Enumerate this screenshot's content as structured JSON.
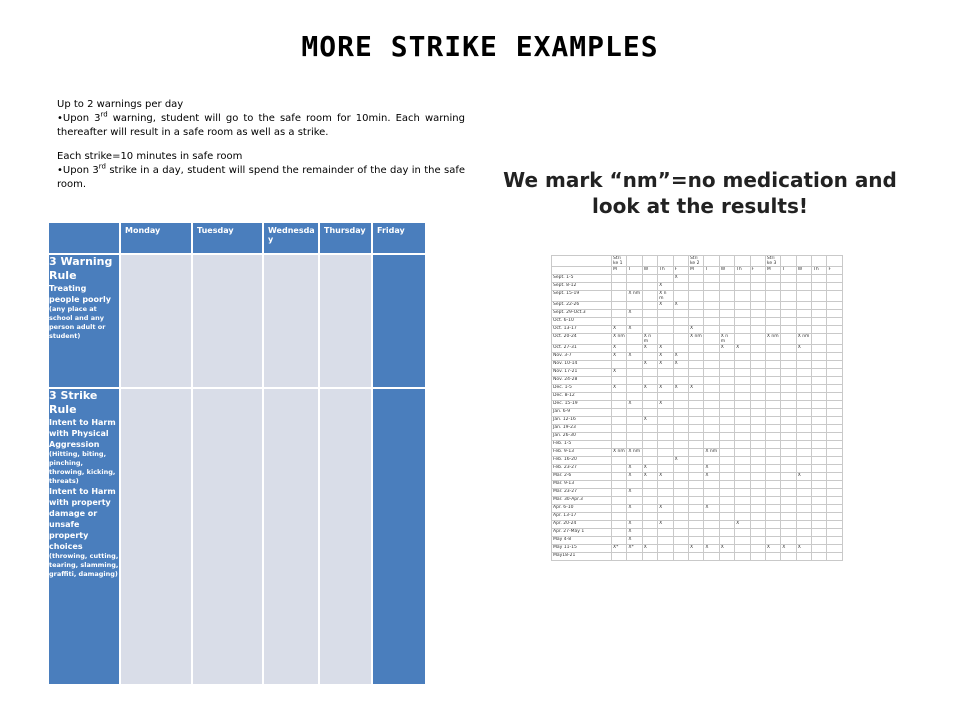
{
  "title": "More Strike Examples",
  "rules": {
    "warnings_heading": "Up to 2 warnings per day",
    "warning_bullet_pre": "Upon 3",
    "warning_bullet_sup": "rd",
    "warning_bullet_post": " warning,  student  will go to the safe room  for 10min.  Each warning thereafter will result in a safe room as well as a strike.",
    "strike_heading": "Each strike=10 minutes in safe room",
    "strike_bullet_pre": "Upon 3",
    "strike_bullet_sup": "rd",
    "strike_bullet_post": " strike in a day, student  will spend  the  remainder  of  the  day  in  the  safe room."
  },
  "left_table": {
    "columns": [
      "",
      "Monday",
      "Tuesday",
      "Wednesda y",
      "Thursday",
      "Friday"
    ],
    "rule1": {
      "name": "3 Warning Rule",
      "desc": "Treating people poorly",
      "note": "(any place at school and any person adult or student)"
    },
    "rule2": {
      "name": "3 Strike Rule",
      "desc1": "Intent to Harm with Physical Aggression",
      "note1": "(Hitting,  biting, pinching, throwing, kicking, threats)",
      "desc2": "Intent to Harm with property damage or unsafe property choices",
      "note2": "(throwing, cutting, tearing, slamming, graffiti, damaging)"
    }
  },
  "headline": "We mark “nm”=no medication and look at the results!",
  "grid": {
    "header1": [
      "",
      "Stri ke 1",
      "",
      "",
      "",
      "",
      "Stri ke 2",
      "",
      "",
      "",
      "",
      "Stri ke 3",
      "",
      "",
      "",
      ""
    ],
    "header2": [
      "",
      "M",
      "T",
      "W",
      "Th",
      "F",
      "M",
      "T",
      "W",
      "Th",
      "F",
      "M",
      "T",
      "W",
      "Th",
      "F"
    ],
    "rows": [
      [
        "Sept. 1-5",
        "",
        "",
        "",
        "",
        "X",
        "",
        "",
        "",
        "",
        "",
        "",
        "",
        "",
        "",
        ""
      ],
      [
        "Sept. 8-12",
        "",
        "",
        "",
        "X",
        "",
        "",
        "",
        "",
        "",
        "",
        "",
        "",
        "",
        "",
        ""
      ],
      [
        "Sept. 15-19",
        "",
        "X nm",
        "",
        "X n m",
        "",
        "",
        "",
        "",
        "",
        "",
        "",
        "",
        "",
        "",
        ""
      ],
      [
        "Sept. 22-26",
        "",
        "",
        "",
        "X",
        "X",
        "",
        "",
        "",
        "",
        "",
        "",
        "",
        "",
        "",
        ""
      ],
      [
        "Sept. 29-Oct.3",
        "",
        "X",
        "",
        "",
        "",
        "",
        "",
        "",
        "",
        "",
        "",
        "",
        "",
        "",
        ""
      ],
      [
        "Oct. 6-10",
        "",
        "",
        "",
        "",
        "",
        "",
        "",
        "",
        "",
        "",
        "",
        "",
        "",
        "",
        ""
      ],
      [
        "Oct. 13-17",
        "X",
        "X",
        "",
        "",
        "",
        "X",
        "",
        "",
        "",
        "",
        "",
        "",
        "",
        "",
        ""
      ],
      [
        "Oct. 20-24",
        "X nm",
        "",
        "X n m",
        "",
        "",
        "X nm",
        "",
        "X n m",
        "",
        "",
        "X nm",
        "",
        "X nm",
        "",
        ""
      ],
      [
        "Oct. 27-31",
        "X",
        "",
        "X",
        "X",
        "",
        "",
        "",
        "X",
        "X",
        "",
        "",
        "",
        "X",
        "",
        ""
      ],
      [
        "Nov. 3-7",
        "X",
        "X",
        "",
        "X",
        "X",
        "",
        "",
        "",
        "",
        "",
        "",
        "",
        "",
        "",
        ""
      ],
      [
        "Nov. 10-14",
        "",
        "",
        "X",
        "X",
        "X",
        "",
        "",
        "",
        "",
        "",
        "",
        "",
        "",
        "",
        ""
      ],
      [
        "Nov. 17-21",
        "X",
        "",
        "",
        "",
        "",
        "",
        "",
        "",
        "",
        "",
        "",
        "",
        "",
        "",
        ""
      ],
      [
        "Nov. 24-28",
        "",
        "",
        "",
        "",
        "",
        "",
        "",
        "",
        "",
        "",
        "",
        "",
        "",
        "",
        ""
      ],
      [
        "Dec. 1-5",
        "X",
        "",
        "X",
        "X",
        "X",
        "X",
        "",
        "",
        "",
        "",
        "",
        "",
        "",
        "",
        ""
      ],
      [
        "Dec. 8-12",
        "",
        "",
        "",
        "",
        "",
        "",
        "",
        "",
        "",
        "",
        "",
        "",
        "",
        "",
        ""
      ],
      [
        "Dec. 15-19",
        "",
        "X",
        "",
        "X",
        "",
        "",
        "",
        "",
        "",
        "",
        "",
        "",
        "",
        "",
        ""
      ],
      [
        "Jan. 6-9",
        "",
        "",
        "",
        "",
        "",
        "",
        "",
        "",
        "",
        "",
        "",
        "",
        "",
        "",
        ""
      ],
      [
        "Jan. 12-16",
        "",
        "",
        "X",
        "",
        "",
        "",
        "",
        "",
        "",
        "",
        "",
        "",
        "",
        "",
        ""
      ],
      [
        "Jan. 19-23",
        "",
        "",
        "",
        "",
        "",
        "",
        "",
        "",
        "",
        "",
        "",
        "",
        "",
        "",
        ""
      ],
      [
        "Jan. 26-30",
        "",
        "",
        "",
        "",
        "",
        "",
        "",
        "",
        "",
        "",
        "",
        "",
        "",
        "",
        ""
      ],
      [
        "Feb. 1-5",
        "",
        "",
        "",
        "",
        "",
        "",
        "",
        "",
        "",
        "",
        "",
        "",
        "",
        "",
        ""
      ],
      [
        "Feb. 9-13",
        "X nm",
        "X nm",
        "",
        "",
        "",
        "",
        "X nm",
        "",
        "",
        "",
        "",
        "",
        "",
        "",
        ""
      ],
      [
        "Feb. 16-20",
        "",
        "",
        "",
        "",
        "X",
        "",
        "",
        "",
        "",
        "",
        "",
        "",
        "",
        "",
        ""
      ],
      [
        "Feb. 23-27",
        "",
        "X",
        "X",
        "",
        "",
        "",
        "X",
        "",
        "",
        "",
        "",
        "",
        "",
        "",
        ""
      ],
      [
        "Mar. 2-6",
        "",
        "X",
        "X",
        "X",
        "",
        "",
        "X",
        "",
        "",
        "",
        "",
        "",
        "X",
        "",
        ""
      ],
      [
        "Mar. 9-13",
        "",
        "",
        "",
        "",
        "",
        "",
        "",
        "",
        "",
        "",
        "",
        "",
        "",
        "",
        ""
      ],
      [
        "Mar. 23-27",
        "",
        "X",
        "",
        "",
        "",
        "",
        "",
        "",
        "",
        "",
        "",
        "",
        "",
        "",
        ""
      ],
      [
        "Mar. 30-Apr.3",
        "",
        "",
        "",
        "",
        "",
        "",
        "",
        "",
        "",
        "",
        "",
        "",
        "",
        "",
        ""
      ],
      [
        "Apr. 6-10",
        "",
        "X",
        "",
        "X",
        "",
        "",
        "X",
        "",
        "",
        "",
        "",
        "",
        "",
        "",
        ""
      ],
      [
        "Apr. 13-17",
        "",
        "",
        "",
        "",
        "",
        "",
        "",
        "",
        "",
        "",
        "",
        "",
        "",
        "",
        ""
      ],
      [
        "Apr. 20-24",
        "",
        "X",
        "",
        "X",
        "",
        "",
        "",
        "",
        "X",
        "",
        "",
        "",
        "",
        "",
        ""
      ],
      [
        "Apr. 27-May 1",
        "",
        "X",
        "",
        "",
        "",
        "",
        "",
        "",
        "",
        "",
        "",
        "",
        "",
        "",
        ""
      ],
      [
        "May 4-8",
        "",
        "X",
        "",
        "",
        "",
        "",
        "",
        "",
        "",
        "",
        "",
        "",
        "",
        "",
        ""
      ],
      [
        "May 11-15",
        "X*",
        "X*",
        "X",
        "",
        "",
        "X",
        "X",
        "X",
        "",
        "",
        "X",
        "X",
        "X",
        "",
        ""
      ],
      [
        "May18-21",
        "",
        "",
        "",
        "",
        "",
        "",
        "",
        "",
        "",
        "",
        "",
        "",
        "",
        "",
        ""
      ]
    ]
  }
}
